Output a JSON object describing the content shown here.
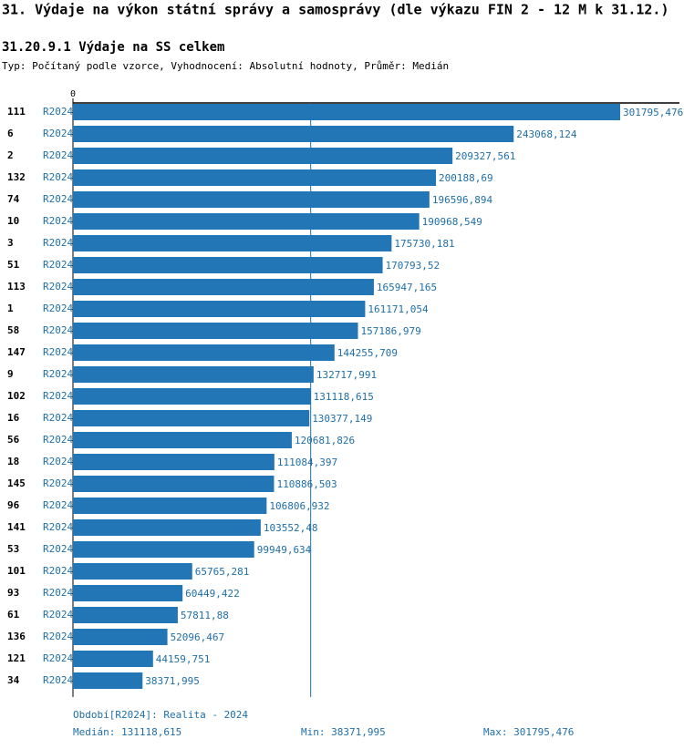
{
  "chart_data": {
    "type": "bar",
    "title": "31. Výdaje na výkon státní správy a samosprávy (dle výkazu FIN 2 - 12 M k 31.12.)",
    "subtitle": "31.20.9.1 Výdaje na SS celkem",
    "description": "Typ: Počítaný podle vzorce, Vyhodnocení: Absolutní hodnoty, Průměr: Medián",
    "categories": [
      "111",
      "6",
      "2",
      "132",
      "74",
      "10",
      "3",
      "51",
      "113",
      "1",
      "58",
      "147",
      "9",
      "102",
      "16",
      "56",
      "18",
      "145",
      "96",
      "141",
      "53",
      "101",
      "93",
      "61",
      "136",
      "121",
      "34"
    ],
    "periods": [
      "R2024",
      "R2024",
      "R2024",
      "R2024",
      "R2024",
      "R2024",
      "R2024",
      "R2024",
      "R2024",
      "R2024",
      "R2024",
      "R2024",
      "R2024",
      "R2024",
      "R2024",
      "R2024",
      "R2024",
      "R2024",
      "R2024",
      "R2024",
      "R2024",
      "R2024",
      "R2024",
      "R2024",
      "R2024",
      "R2024",
      "R2024"
    ],
    "values": [
      301795.476,
      243068.124,
      209327.561,
      200188.69,
      196596.894,
      190968.549,
      175730.181,
      170793.52,
      165947.165,
      161171.054,
      157186.979,
      144255.709,
      132717.991,
      131118.615,
      130377.149,
      120681.826,
      111084.397,
      110886.503,
      106806.932,
      103552.48,
      99949.634,
      65765.281,
      60449.422,
      57811.88,
      52096.467,
      44159.751,
      38371.995
    ],
    "value_labels": [
      "301795,476",
      "243068,124",
      "209327,561",
      "200188,69",
      "196596,894",
      "190968,549",
      "175730,181",
      "170793,52",
      "165947,165",
      "161171,054",
      "157186,979",
      "144255,709",
      "132717,991",
      "131118,615",
      "130377,149",
      "120681,826",
      "111084,397",
      "110886,503",
      "106806,932",
      "103552,48",
      "99949,634",
      "65765,281",
      "60449,422",
      "57811,88",
      "52096,467",
      "44159,751",
      "38371,995"
    ],
    "color": "#2276b5",
    "xlim": [
      0,
      301795.476
    ],
    "xticks": [
      0
    ],
    "median": {
      "value": 131118.615,
      "label": "Medián: 131118,615"
    },
    "min": {
      "value": 38371.995,
      "label": "Min: 38371,995"
    },
    "max": {
      "value": 301795.476,
      "label": "Max: 301795,476"
    },
    "period_note": "Období[R2024]: Realita - 2024"
  }
}
